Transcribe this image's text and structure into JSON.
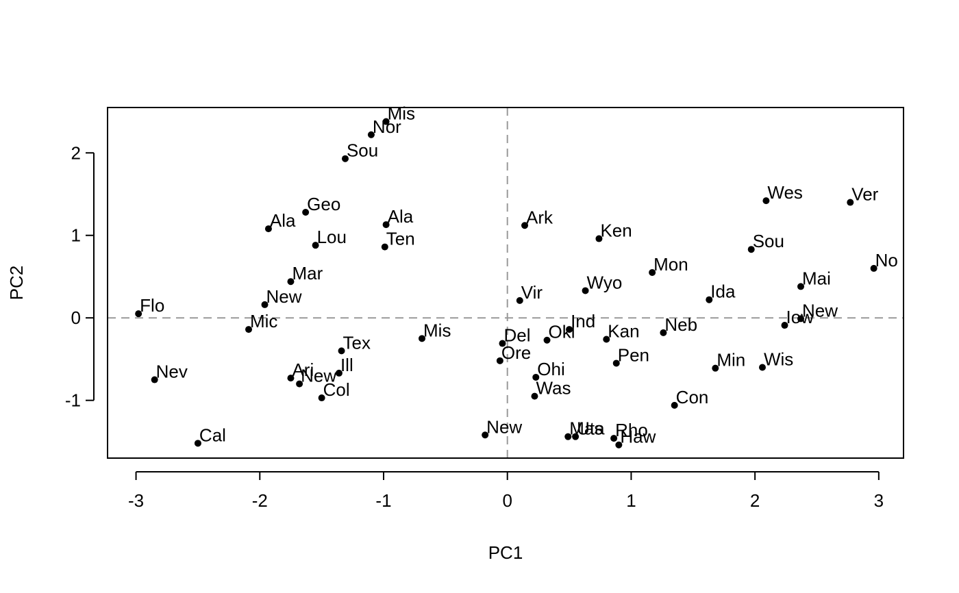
{
  "chart_data": {
    "type": "scatter",
    "title": "",
    "xlabel": "PC1",
    "ylabel": "PC2",
    "xlim": [
      -3.23,
      3.2
    ],
    "ylim": [
      -1.7,
      2.55
    ],
    "x_ticks": [
      -3,
      -2,
      -1,
      0,
      1,
      2,
      3
    ],
    "y_ticks": [
      -1,
      0,
      1,
      2
    ],
    "x_tick_labels": [
      "-3",
      "-2",
      "-1",
      "0",
      "1",
      "2",
      "3"
    ],
    "y_tick_labels": [
      "-1",
      "0",
      "1",
      "2"
    ],
    "reference_lines": {
      "x": 0,
      "y": 0,
      "style": "dashed",
      "color": "#999999"
    },
    "grid": false,
    "point_color": "#000000",
    "points": [
      {
        "label": "Mis",
        "x": -0.98,
        "y": 2.38
      },
      {
        "label": "Nor",
        "x": -1.1,
        "y": 2.22
      },
      {
        "label": "Sou",
        "x": -1.31,
        "y": 1.93
      },
      {
        "label": "Geo",
        "x": -1.63,
        "y": 1.28
      },
      {
        "label": "Ala",
        "x": -1.93,
        "y": 1.08
      },
      {
        "label": "Ala",
        "x": -0.98,
        "y": 1.13
      },
      {
        "label": "Lou",
        "x": -1.55,
        "y": 0.88
      },
      {
        "label": "Ten",
        "x": -0.99,
        "y": 0.86
      },
      {
        "label": "Mar",
        "x": -1.75,
        "y": 0.44
      },
      {
        "label": "New",
        "x": -1.96,
        "y": 0.16
      },
      {
        "label": "Flo",
        "x": -2.98,
        "y": 0.05
      },
      {
        "label": "Mic",
        "x": -2.09,
        "y": -0.14
      },
      {
        "label": "Mis",
        "x": -0.69,
        "y": -0.25
      },
      {
        "label": "Tex",
        "x": -1.34,
        "y": -0.4
      },
      {
        "label": "Ill",
        "x": -1.36,
        "y": -0.67
      },
      {
        "label": "Ari",
        "x": -1.75,
        "y": -0.73
      },
      {
        "label": "New",
        "x": -1.68,
        "y": -0.8
      },
      {
        "label": "Col",
        "x": -1.5,
        "y": -0.97
      },
      {
        "label": "Nev",
        "x": -2.85,
        "y": -0.75
      },
      {
        "label": "Cal",
        "x": -2.5,
        "y": -1.52
      },
      {
        "label": "Ark",
        "x": 0.14,
        "y": 1.12
      },
      {
        "label": "Ken",
        "x": 0.74,
        "y": 0.96
      },
      {
        "label": "Wes",
        "x": 2.09,
        "y": 1.42
      },
      {
        "label": "Ver",
        "x": 2.77,
        "y": 1.4
      },
      {
        "label": "Sou",
        "x": 1.97,
        "y": 0.83
      },
      {
        "label": "No",
        "x": 2.96,
        "y": 0.6
      },
      {
        "label": "Mon",
        "x": 1.17,
        "y": 0.55
      },
      {
        "label": "Mai",
        "x": 2.37,
        "y": 0.38
      },
      {
        "label": "Wyo",
        "x": 0.63,
        "y": 0.33
      },
      {
        "label": "Vir",
        "x": 0.1,
        "y": 0.21
      },
      {
        "label": "Ida",
        "x": 1.63,
        "y": 0.22
      },
      {
        "label": "New",
        "x": 2.37,
        "y": -0.01
      },
      {
        "label": "Iow",
        "x": 2.24,
        "y": -0.09
      },
      {
        "label": "Ind",
        "x": 0.5,
        "y": -0.14
      },
      {
        "label": "Neb",
        "x": 1.26,
        "y": -0.18
      },
      {
        "label": "Okl",
        "x": 0.32,
        "y": -0.27
      },
      {
        "label": "Kan",
        "x": 0.8,
        "y": -0.26
      },
      {
        "label": "Del",
        "x": -0.04,
        "y": -0.31
      },
      {
        "label": "Pen",
        "x": 0.88,
        "y": -0.55
      },
      {
        "label": "Ore",
        "x": -0.06,
        "y": -0.52
      },
      {
        "label": "Min",
        "x": 1.68,
        "y": -0.61
      },
      {
        "label": "Wis",
        "x": 2.06,
        "y": -0.6
      },
      {
        "label": "Ohi",
        "x": 0.23,
        "y": -0.72
      },
      {
        "label": "Was",
        "x": 0.22,
        "y": -0.95
      },
      {
        "label": "Con",
        "x": 1.35,
        "y": -1.06
      },
      {
        "label": "New",
        "x": -0.18,
        "y": -1.42
      },
      {
        "label": "Mas",
        "x": 0.49,
        "y": -1.44
      },
      {
        "label": "Uta",
        "x": 0.55,
        "y": -1.44
      },
      {
        "label": "Rho",
        "x": 0.86,
        "y": -1.46
      },
      {
        "label": "Haw",
        "x": 0.9,
        "y": -1.54
      }
    ]
  }
}
